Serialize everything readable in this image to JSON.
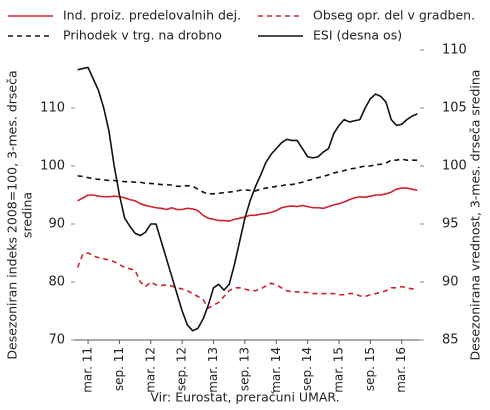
{
  "chart_data": {
    "type": "line",
    "ylabel": [
      "Desezoniran indeks 2008=100, 3-mes. drseča",
      "sredina"
    ],
    "y2label": [
      "Desezonirana vrednost, 3-mes. drseča sredina"
    ],
    "source": "Vir: Eurostat, preračuni UMAR.",
    "categories": [
      null,
      null,
      "mar. 11",
      null,
      null,
      null,
      null,
      null,
      "sep. 11",
      null,
      null,
      null,
      null,
      null,
      "mar. 12",
      null,
      null,
      null,
      null,
      null,
      "sep. 12",
      null,
      null,
      null,
      null,
      null,
      "mar. 13",
      null,
      null,
      null,
      null,
      null,
      "sep. 13",
      null,
      null,
      null,
      null,
      null,
      "mar. 14",
      null,
      null,
      null,
      null,
      null,
      "sep. 14",
      null,
      null,
      null,
      null,
      null,
      "mar. 15",
      null,
      null,
      null,
      null,
      null,
      "sep. 15",
      null,
      null,
      null,
      null,
      null,
      "mar. 16",
      null,
      null,
      null
    ],
    "ylim": [
      70,
      120
    ],
    "yticks": [
      70,
      80,
      90,
      100,
      110
    ],
    "y2lim": [
      85,
      110
    ],
    "y2ticks": [
      85,
      90,
      95,
      100,
      105,
      110
    ],
    "series": [
      {
        "name": "Ind. proiz. predelovalnih dej.",
        "color": "#d0202e",
        "dash": false,
        "values": [
          94,
          94.5,
          95,
          95,
          94.8,
          94.7,
          94.7,
          94.8,
          94.7,
          94.5,
          94.2,
          94,
          93.5,
          93.2,
          93,
          92.8,
          92.7,
          92.5,
          92.8,
          92.5,
          92.5,
          92.7,
          92.6,
          92.3,
          91.5,
          91,
          90.8,
          90.6,
          90.6,
          90.5,
          90.8,
          91,
          91.2,
          91.5,
          91.5,
          91.7,
          91.8,
          92,
          92.3,
          92.8,
          93,
          93.1,
          93,
          93.2,
          93,
          92.8,
          92.8,
          92.7,
          93,
          93.3,
          93.5,
          93.8,
          94.2,
          94.5,
          94.7,
          94.6,
          94.8,
          95,
          95,
          95.2,
          95.5,
          96,
          96.2,
          96.2,
          96,
          95.8
        ]
      },
      {
        "name": "Obseg opr. del v gradben.",
        "color": "#d0202e",
        "dash": true,
        "values": [
          82.5,
          84.8,
          85,
          84.5,
          84.2,
          84,
          83.8,
          83.5,
          83,
          82.5,
          82.3,
          82,
          80,
          79.2,
          80,
          79.5,
          79.4,
          79.5,
          79.3,
          79,
          78.8,
          78.5,
          78,
          77.5,
          77,
          75.5,
          76,
          76.5,
          77.5,
          78.5,
          79,
          79,
          78.8,
          78.5,
          78.5,
          78.8,
          79.3,
          79.8,
          79.5,
          79,
          78.5,
          78.3,
          78.3,
          78.2,
          78.2,
          78,
          78,
          78,
          78,
          78,
          77.8,
          77.8,
          78,
          78,
          77.6,
          77.5,
          77.8,
          78,
          78.2,
          78.5,
          79,
          79,
          79.2,
          79,
          78.8,
          78.8
        ]
      },
      {
        "name": "Prihodek v trg. na drobno",
        "color": "#111111",
        "dash": true,
        "values": [
          98.3,
          98.2,
          98,
          97.8,
          97.7,
          97.6,
          97.5,
          97.5,
          97.4,
          97.3,
          97.3,
          97.2,
          97.2,
          97,
          97,
          96.9,
          96.8,
          96.8,
          96.7,
          96.5,
          96.5,
          96.6,
          96.5,
          96,
          95.5,
          95.2,
          95.2,
          95.3,
          95.4,
          95.5,
          95.6,
          95.8,
          95.9,
          95.8,
          95.7,
          96,
          96.2,
          96.3,
          96.5,
          96.6,
          96.8,
          96.8,
          97,
          97.2,
          97.5,
          97.7,
          98,
          98.2,
          98.5,
          98.8,
          99,
          99.2,
          99.5,
          99.6,
          99.8,
          100,
          100,
          100.2,
          100.3,
          100.5,
          101,
          101,
          101.2,
          101,
          101,
          101
        ]
      },
      {
        "name": "ESI (desna os)",
        "color": "#111111",
        "dash": false,
        "axis": "y2",
        "values": [
          108.3,
          108.4,
          108.5,
          107.5,
          106.5,
          105,
          103,
          100,
          97.5,
          95.5,
          94.8,
          94.2,
          94,
          94.3,
          95,
          95,
          93.5,
          92,
          90.5,
          89,
          87.5,
          86.3,
          85.8,
          86,
          86.8,
          88,
          89.5,
          89.8,
          89.3,
          89.8,
          91.5,
          93.5,
          95.5,
          97,
          98.2,
          99.2,
          100.3,
          101,
          101.5,
          102,
          102.3,
          102.2,
          102.2,
          101.5,
          100.8,
          100.7,
          100.8,
          101.2,
          101.5,
          102.8,
          103.5,
          104,
          103.8,
          103.9,
          104,
          105,
          105.8,
          106.2,
          106,
          105.5,
          104,
          103.5,
          103.6,
          104,
          104.3,
          104.5
        ]
      }
    ]
  }
}
